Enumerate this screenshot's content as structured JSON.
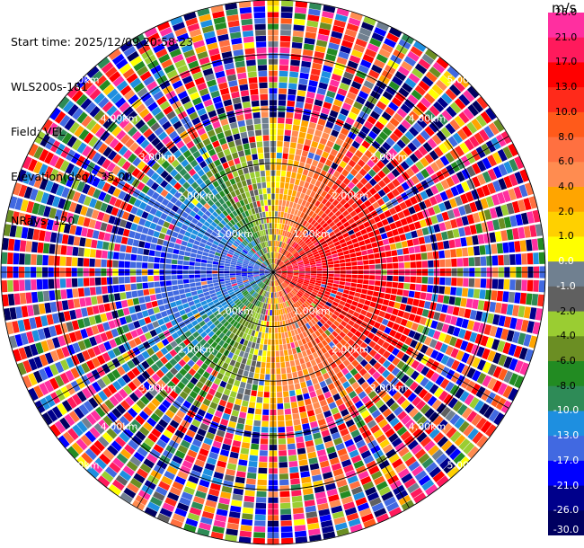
{
  "info": {
    "start_time": "Start time: 2025/12/09 20:58:23",
    "instrument": "WLS200s-181",
    "field": "Field: VEL",
    "elevation": "Elevation(deg): 35.00",
    "nrays": "NRays: 120"
  },
  "colorbar": {
    "unit": "m/s",
    "ticks": [
      "26.0",
      "21.0",
      "17.0",
      "13.0",
      "10.0",
      "8.0",
      "6.0",
      "4.0",
      "2.0",
      "1.0",
      "0.0",
      "-1.0",
      "-2.0",
      "-4.0",
      "-6.0",
      "-8.0",
      "-10.0",
      "-13.0",
      "-17.0",
      "-21.0",
      "-26.0",
      "-30.0"
    ],
    "colors": [
      "#ff2fa0",
      "#ff1a5c",
      "#ff0000",
      "#ff2a1a",
      "#ff5a1a",
      "#ff7040",
      "#ff8c50",
      "#ffa500",
      "#ffd000",
      "#ffff00",
      "#708090",
      "#606060",
      "#9acd32",
      "#6b8e23",
      "#228b22",
      "#2e8b57",
      "#1e8fe0",
      "#4169e1",
      "#0000ff",
      "#00008b",
      "#000060"
    ]
  },
  "chart_data": {
    "type": "ppi",
    "field": "VEL",
    "units": "m/s",
    "vmin": -30.0,
    "vmax": 26.0,
    "range_ring_labels": [
      "1.00km",
      "2.00km",
      "3.00km",
      "4.00km",
      "5.00km"
    ],
    "range_rings_km": [
      1,
      2,
      3,
      4,
      5
    ],
    "max_range_km": 5.0,
    "nrays": 120,
    "elevation_deg": 35.0,
    "azimuth_velocity_pattern": [
      {
        "azimuth_deg": 0,
        "vel": 1.0
      },
      {
        "azimuth_deg": 45,
        "vel": 12.0
      },
      {
        "azimuth_deg": 90,
        "vel": 17.0
      },
      {
        "azimuth_deg": 135,
        "vel": 10.0
      },
      {
        "azimuth_deg": 180,
        "vel": 3.0
      },
      {
        "azimuth_deg": 225,
        "vel": -9.0
      },
      {
        "azimuth_deg": 270,
        "vel": -17.0
      },
      {
        "azimuth_deg": 315,
        "vel": -11.0
      }
    ]
  }
}
